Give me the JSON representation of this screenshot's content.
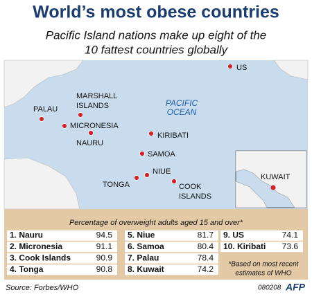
{
  "header": {
    "title": "World’s most obese countries",
    "subtitle": [
      "Pacific Island nations make up eight of the",
      "10 fattest countries globally"
    ]
  },
  "map": {
    "ocean_label": [
      "PACIFIC",
      "OCEAN"
    ],
    "places": [
      {
        "label": [
          "US"
        ]
      },
      {
        "label": [
          "PALAU"
        ]
      },
      {
        "label": [
          "MICRONESIA"
        ]
      },
      {
        "label": [
          "MARSHALL",
          "ISLANDS"
        ]
      },
      {
        "label": [
          "NAURU"
        ]
      },
      {
        "label": [
          "KIRIBATI"
        ]
      },
      {
        "label": [
          "SAMOA"
        ]
      },
      {
        "label": [
          "NIUE"
        ]
      },
      {
        "label": [
          "TONGA"
        ]
      },
      {
        "label": [
          "COOK",
          "ISLANDS"
        ]
      }
    ],
    "inset": {
      "label": "KUWAIT"
    }
  },
  "table": {
    "caption": "Percentage of overweight adults aged 15 and over*",
    "rows": [
      [
        "1. Nauru",
        94.5
      ],
      [
        "2. Micronesia",
        91.1
      ],
      [
        "3. Cook Islands",
        90.9
      ],
      [
        "4. Tonga",
        90.8
      ],
      [
        "5. Niue",
        81.7
      ],
      [
        "6. Samoa",
        80.4
      ],
      [
        "7. Palau",
        78.4
      ],
      [
        "8. Kuwait",
        74.2
      ],
      [
        "9. US",
        74.1
      ],
      [
        "10. Kiribati",
        73.6
      ]
    ],
    "footnote": [
      "*Based on most recent",
      "estimates of WHO"
    ]
  },
  "footer": {
    "source": "Source: Forbes/WHO",
    "code": "080208",
    "logo": "AFP"
  }
}
